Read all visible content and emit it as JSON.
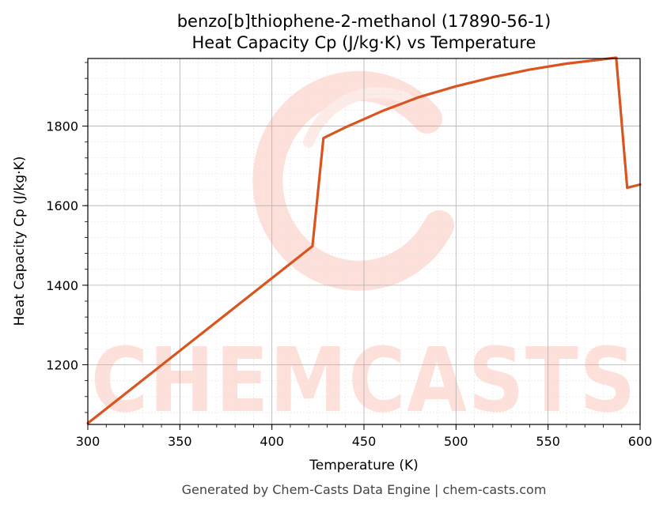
{
  "chart_data": {
    "type": "line",
    "title_line1": "benzo[b]thiophene-2-methanol (17890-56-1)",
    "title_line2": "Heat Capacity Cp (J/kg·K) vs Temperature",
    "xlabel": "Temperature (K)",
    "ylabel": "Heat Capacity Cp (J/kg·K)",
    "xlim": [
      300,
      600
    ],
    "ylim": [
      1050,
      1970
    ],
    "x_ticks": [
      300,
      350,
      400,
      450,
      500,
      550,
      600
    ],
    "y_ticks": [
      1200,
      1400,
      1600,
      1800
    ],
    "grid": true,
    "line_color": "#d9541e",
    "series": [
      {
        "x": [
          300,
          422,
          428,
          440,
          460,
          480,
          500,
          520,
          540,
          560,
          587,
          593,
          600
        ],
        "y": [
          1053,
          1498,
          1770,
          1797,
          1838,
          1873,
          1900,
          1923,
          1942,
          1957,
          1972,
          1645,
          1653
        ]
      }
    ]
  },
  "watermark": {
    "text": "CHEMCASTS",
    "color": "#fde0da"
  },
  "footer": "Generated by Chem-Casts Data Engine | chem-casts.com"
}
